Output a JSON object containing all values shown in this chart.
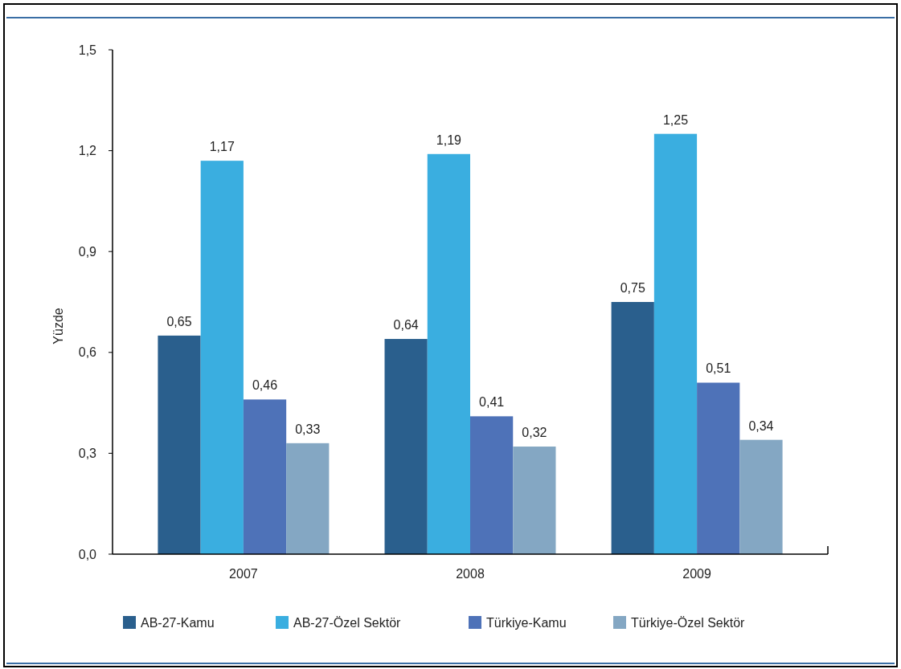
{
  "chart_data": {
    "type": "bar",
    "ylabel": "Yüzde",
    "categories": [
      "2007",
      "2008",
      "2009"
    ],
    "series": [
      {
        "name": "AB-27-Kamu",
        "color": "#2a5f8d",
        "values": [
          0.65,
          0.64,
          0.75
        ],
        "value_labels": [
          "0,65",
          "0,64",
          "0,75"
        ]
      },
      {
        "name": "AB-27-Özel Sektör",
        "color": "#3aaee0",
        "values": [
          1.17,
          1.19,
          1.25
        ],
        "value_labels": [
          "1,17",
          "1,19",
          "1,25"
        ]
      },
      {
        "name": "Türkiye-Kamu",
        "color": "#4e72b8",
        "values": [
          0.46,
          0.41,
          0.51
        ],
        "value_labels": [
          "0,46",
          "0,41",
          "0,51"
        ]
      },
      {
        "name": "Türkiye-Özel Sektör",
        "color": "#84a7c3",
        "values": [
          0.33,
          0.32,
          0.34
        ],
        "value_labels": [
          "0,33",
          "0,32",
          "0,34"
        ]
      }
    ],
    "ylim": [
      0,
      1.5
    ],
    "yticks": [
      {
        "value": 0,
        "label": "0,0"
      },
      {
        "value": 0.3,
        "label": "0,3"
      },
      {
        "value": 0.6,
        "label": "0,6"
      },
      {
        "value": 0.9,
        "label": "0,9"
      },
      {
        "value": 1.2,
        "label": "1,2"
      },
      {
        "value": 1.5,
        "label": "1,5"
      }
    ],
    "grid": false,
    "legend": "bottom"
  }
}
